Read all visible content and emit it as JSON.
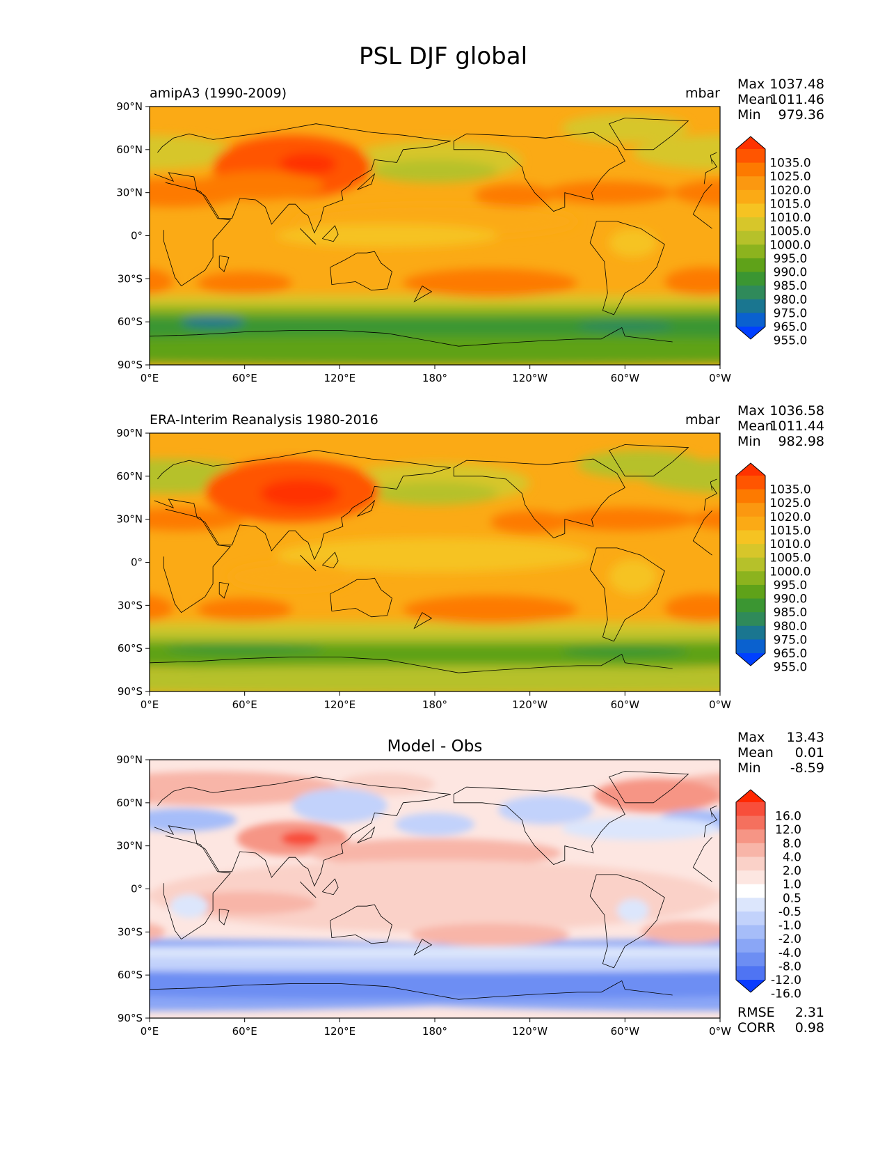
{
  "figure_title": "PSL DJF global",
  "lat_ticks": [
    "90°N",
    "60°N",
    "30°N",
    "0°",
    "30°S",
    "60°S",
    "90°S"
  ],
  "lon_ticks": [
    "0°E",
    "60°E",
    "120°E",
    "180°",
    "120°W",
    "60°W",
    "0°W"
  ],
  "stat_labels": {
    "max": "Max",
    "mean": "Mean",
    "min": "Min",
    "rmse": "RMSE",
    "corr": "CORR"
  },
  "panels": [
    {
      "title_left": "amipA3 (1990-2009)",
      "title_right": "mbar",
      "title_center": "",
      "stats": {
        "max": "1037.48",
        "mean": "1011.46",
        "min": "979.36"
      },
      "colorbar": {
        "labels": [
          "1035.0",
          "1025.0",
          "1020.0",
          "1015.0",
          "1010.0",
          "1005.0",
          "1000.0",
          "995.0",
          "990.0",
          "985.0",
          "980.0",
          "975.0",
          "965.0",
          "955.0"
        ],
        "colors": [
          "#ff3300",
          "#ff5500",
          "#fd7a00",
          "#fb9810",
          "#fbaa15",
          "#f6c322",
          "#d7c62a",
          "#b6c12a",
          "#8cb31e",
          "#5fa219",
          "#3b9632",
          "#2f8a5a",
          "#1a7690",
          "#0a61cf",
          "#0040ff"
        ]
      }
    },
    {
      "title_left": "ERA-Interim Reanalysis 1980-2016",
      "title_right": "mbar",
      "title_center": "",
      "stats": {
        "max": "1036.58",
        "mean": "1011.44",
        "min": "982.98"
      },
      "colorbar": {
        "labels": [
          "1035.0",
          "1025.0",
          "1020.0",
          "1015.0",
          "1010.0",
          "1005.0",
          "1000.0",
          "995.0",
          "990.0",
          "985.0",
          "980.0",
          "975.0",
          "965.0",
          "955.0"
        ],
        "colors": [
          "#ff3300",
          "#ff5500",
          "#fd7a00",
          "#fb9810",
          "#fbaa15",
          "#f6c322",
          "#d7c62a",
          "#b6c12a",
          "#8cb31e",
          "#5fa219",
          "#3b9632",
          "#2f8a5a",
          "#1a7690",
          "#0a61cf",
          "#0040ff"
        ]
      }
    },
    {
      "title_left": "",
      "title_right": "",
      "title_center": "Model - Obs",
      "stats": {
        "max": "13.43",
        "mean": "0.01",
        "min": "-8.59"
      },
      "extra_stats": {
        "rmse": "2.31",
        "corr": "0.98"
      },
      "colorbar": {
        "labels": [
          "16.0",
          "12.0",
          "8.0",
          "4.0",
          "2.0",
          "1.0",
          "0.5",
          "-0.5",
          "-1.0",
          "-2.0",
          "-4.0",
          "-8.0",
          "-12.0",
          "-16.0"
        ],
        "colors": [
          "#ff2800",
          "#f84e3a",
          "#f5705e",
          "#f69585",
          "#f8b5a8",
          "#fad1c8",
          "#fde6e1",
          "#ffffff",
          "#dce6fc",
          "#c2d2fb",
          "#a6bdf9",
          "#8aa6f6",
          "#6d8ef3",
          "#4f74f3",
          "#0a3cff"
        ]
      }
    }
  ],
  "chart_data": [
    {
      "type": "heatmap",
      "title": "amipA3 (1990-2009)",
      "units": "mbar",
      "xlim": [
        0,
        360
      ],
      "ylim": [
        -90,
        90
      ],
      "x_ticks": [
        "0°E",
        "60°E",
        "120°E",
        "180°",
        "120°W",
        "60°W",
        "0°W"
      ],
      "y_ticks": [
        "90°N",
        "60°N",
        "30°N",
        "0°",
        "30°S",
        "60°S",
        "90°S"
      ],
      "levels": [
        955,
        965,
        975,
        980,
        985,
        990,
        995,
        1000,
        1005,
        1010,
        1015,
        1020,
        1025,
        1035
      ],
      "stats": {
        "max": 1037.48,
        "mean": 1011.46,
        "min": 979.36
      }
    },
    {
      "type": "heatmap",
      "title": "ERA-Interim Reanalysis 1980-2016",
      "units": "mbar",
      "xlim": [
        0,
        360
      ],
      "ylim": [
        -90,
        90
      ],
      "x_ticks": [
        "0°E",
        "60°E",
        "120°E",
        "180°",
        "120°W",
        "60°W",
        "0°W"
      ],
      "y_ticks": [
        "90°N",
        "60°N",
        "30°N",
        "0°",
        "30°S",
        "60°S",
        "90°S"
      ],
      "levels": [
        955,
        965,
        975,
        980,
        985,
        990,
        995,
        1000,
        1005,
        1010,
        1015,
        1020,
        1025,
        1035
      ],
      "stats": {
        "max": 1036.58,
        "mean": 1011.44,
        "min": 982.98
      }
    },
    {
      "type": "heatmap",
      "title": "Model - Obs",
      "xlim": [
        0,
        360
      ],
      "ylim": [
        -90,
        90
      ],
      "x_ticks": [
        "0°E",
        "60°E",
        "120°E",
        "180°",
        "120°W",
        "60°W",
        "0°W"
      ],
      "y_ticks": [
        "90°N",
        "60°N",
        "30°N",
        "0°",
        "30°S",
        "60°S",
        "90°S"
      ],
      "levels": [
        -16,
        -12,
        -8,
        -4,
        -2,
        -1,
        -0.5,
        0.5,
        1,
        2,
        4,
        8,
        12,
        16
      ],
      "stats": {
        "max": 13.43,
        "mean": 0.01,
        "min": -8.59,
        "rmse": 2.31,
        "corr": 0.98
      }
    }
  ]
}
